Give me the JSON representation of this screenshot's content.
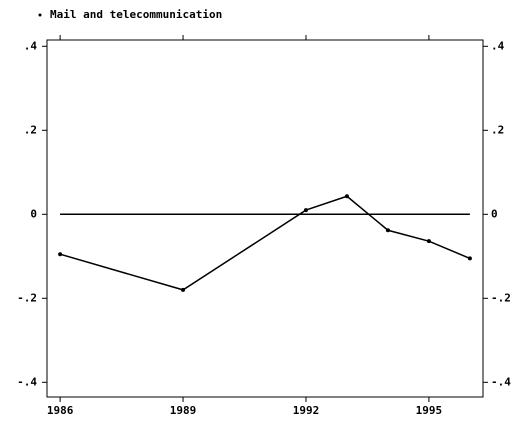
{
  "chart_data": {
    "type": "line",
    "x": [
      1986,
      1989,
      1992,
      1993,
      1994,
      1995,
      1996
    ],
    "series": [
      {
        "name": "Mail and telecommunication",
        "color": "#000000",
        "values": [
          -0.095,
          -0.18,
          0.01,
          0.043,
          -0.038,
          -0.064,
          -0.105
        ]
      }
    ],
    "xlim": [
      1985.68,
      1996.32
    ],
    "xticks": [
      1986,
      1989,
      1992,
      1995
    ],
    "ylim": [
      -0.435,
      0.415
    ],
    "yticks": [
      {
        "value": 0.4,
        "label": ".4"
      },
      {
        "value": 0.2,
        "label": ".2"
      },
      0,
      {
        "value": -0.2,
        "label": "-.2"
      },
      {
        "value": -0.4,
        "label": "-.4"
      }
    ],
    "yline": 0,
    "legend": "top-left"
  }
}
